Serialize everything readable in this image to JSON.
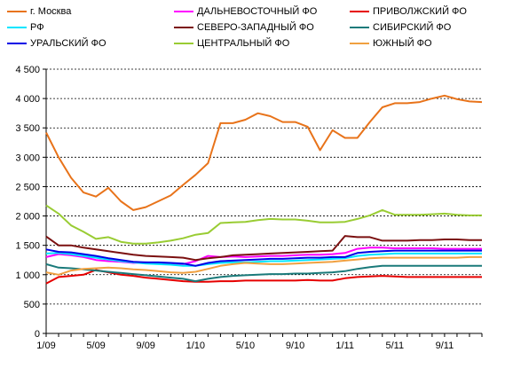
{
  "chart_data": {
    "type": "line",
    "title": "",
    "xlabel": "",
    "ylabel": "",
    "ylim": [
      0,
      4500
    ],
    "yticks": [
      "0",
      "500",
      "1 000",
      "1 500",
      "2 000",
      "2 500",
      "3 000",
      "3 500",
      "4 000",
      "4 500"
    ],
    "ytick_values": [
      0,
      500,
      1000,
      1500,
      2000,
      2500,
      3000,
      3500,
      4000,
      4500
    ],
    "xticks": [
      "1/09",
      "5/09",
      "9/09",
      "1/10",
      "5/10",
      "9/10",
      "1/11",
      "5/11",
      "9/11"
    ],
    "xtick_index": [
      0,
      4,
      8,
      12,
      16,
      20,
      24,
      28,
      32
    ],
    "x": [
      "1/09",
      "2/09",
      "3/09",
      "4/09",
      "5/09",
      "6/09",
      "7/09",
      "8/09",
      "9/09",
      "10/09",
      "11/09",
      "12/09",
      "1/10",
      "2/10",
      "3/10",
      "4/10",
      "5/10",
      "6/10",
      "7/10",
      "8/10",
      "9/10",
      "10/10",
      "11/10",
      "12/10",
      "1/11",
      "2/11",
      "3/11",
      "4/11",
      "5/11",
      "6/11",
      "7/11",
      "8/11",
      "9/11",
      "10/11",
      "11/11",
      "12/11"
    ],
    "grid": "horizontal-dashed",
    "legend_position": "top",
    "series": [
      {
        "name": "г. Москва",
        "color": "#e8731a",
        "values": [
          3420,
          3000,
          2650,
          2400,
          2330,
          2480,
          2250,
          2100,
          2150,
          2250,
          2350,
          2530,
          2700,
          2900,
          3580,
          3580,
          3640,
          3750,
          3700,
          3600,
          3600,
          3520,
          3120,
          3460,
          3330,
          3330,
          3600,
          3850,
          3920,
          3920,
          3940,
          4000,
          4050,
          3990,
          3950,
          3940
        ]
      },
      {
        "name": "ДАЛЬНЕВОСТОЧНЫЙ ФО",
        "color": "#ff00ff",
        "values": [
          1300,
          1350,
          1330,
          1300,
          1250,
          1230,
          1220,
          1200,
          1210,
          1200,
          1190,
          1180,
          1230,
          1320,
          1300,
          1310,
          1300,
          1310,
          1320,
          1320,
          1330,
          1340,
          1340,
          1350,
          1370,
          1440,
          1460,
          1460,
          1450,
          1450,
          1450,
          1450,
          1440,
          1440,
          1440,
          1440
        ]
      },
      {
        "name": "ПРИВОЛЖСКИЙ ФО",
        "color": "#e60000",
        "values": [
          850,
          960,
          980,
          1000,
          1080,
          1040,
          1000,
          980,
          950,
          930,
          910,
          890,
          880,
          880,
          890,
          890,
          900,
          900,
          900,
          900,
          900,
          910,
          900,
          900,
          940,
          960,
          970,
          980,
          970,
          960,
          960,
          960,
          960,
          960,
          960,
          960
        ]
      },
      {
        "name": "РФ",
        "color": "#00e5ff",
        "values": [
          1360,
          1370,
          1350,
          1320,
          1290,
          1260,
          1230,
          1210,
          1190,
          1180,
          1170,
          1150,
          1150,
          1180,
          1200,
          1210,
          1210,
          1220,
          1230,
          1230,
          1240,
          1250,
          1260,
          1270,
          1280,
          1320,
          1340,
          1350,
          1360,
          1360,
          1360,
          1360,
          1360,
          1360,
          1360,
          1360
        ]
      },
      {
        "name": "СЕВЕРО-ЗАПАДНЫЙ ФО",
        "color": "#7b1010",
        "values": [
          1650,
          1500,
          1500,
          1460,
          1430,
          1400,
          1370,
          1340,
          1320,
          1310,
          1300,
          1290,
          1250,
          1280,
          1300,
          1330,
          1340,
          1350,
          1360,
          1370,
          1380,
          1390,
          1400,
          1410,
          1660,
          1640,
          1640,
          1580,
          1580,
          1580,
          1590,
          1590,
          1600,
          1600,
          1590,
          1590
        ]
      },
      {
        "name": "СИБИРСКИЙ ФО",
        "color": "#1a7a7a",
        "values": [
          1180,
          1120,
          1110,
          1090,
          1070,
          1050,
          1030,
          1010,
          990,
          970,
          950,
          930,
          890,
          930,
          960,
          980,
          990,
          1000,
          1010,
          1010,
          1020,
          1020,
          1030,
          1040,
          1060,
          1100,
          1130,
          1150,
          1150,
          1150,
          1150,
          1150,
          1150,
          1150,
          1150,
          1150
        ]
      },
      {
        "name": "УРАЛЬСКИЙ ФО",
        "color": "#0000e6",
        "values": [
          1430,
          1390,
          1380,
          1350,
          1320,
          1280,
          1250,
          1220,
          1210,
          1210,
          1200,
          1190,
          1150,
          1200,
          1230,
          1240,
          1250,
          1260,
          1270,
          1270,
          1280,
          1290,
          1290,
          1300,
          1300,
          1370,
          1390,
          1400,
          1410,
          1410,
          1410,
          1410,
          1410,
          1410,
          1410,
          1410
        ]
      },
      {
        "name": "ЦЕНТРАЛЬНЫЙ ФО",
        "color": "#99cc33",
        "values": [
          2180,
          2040,
          1840,
          1730,
          1610,
          1640,
          1560,
          1530,
          1530,
          1550,
          1580,
          1620,
          1680,
          1710,
          1880,
          1890,
          1900,
          1930,
          1950,
          1940,
          1940,
          1920,
          1890,
          1890,
          1900,
          1950,
          2010,
          2100,
          2020,
          2020,
          2020,
          2030,
          2040,
          2020,
          2010,
          2010
        ]
      },
      {
        "name": "ЮЖНЫЙ ФО",
        "color": "#f0a040",
        "values": [
          1040,
          1000,
          1070,
          1100,
          1110,
          1120,
          1110,
          1090,
          1080,
          1060,
          1040,
          1030,
          1050,
          1100,
          1150,
          1180,
          1200,
          1190,
          1180,
          1180,
          1190,
          1200,
          1210,
          1220,
          1240,
          1260,
          1280,
          1290,
          1290,
          1290,
          1290,
          1290,
          1290,
          1290,
          1300,
          1300
        ]
      }
    ]
  }
}
